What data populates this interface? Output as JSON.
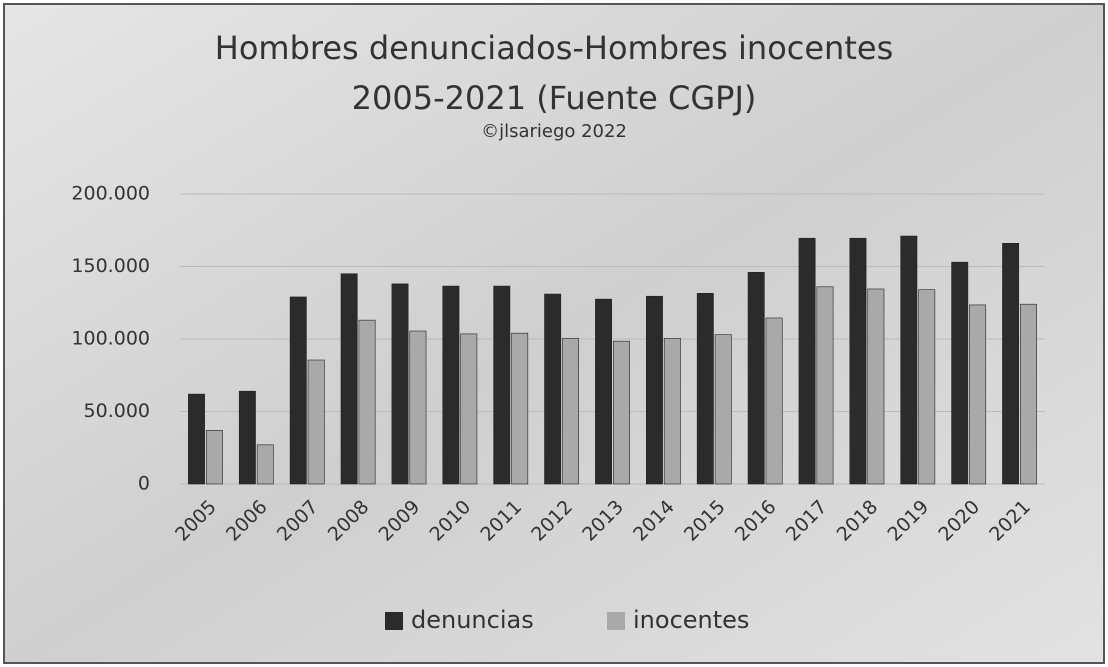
{
  "chart_data": {
    "type": "bar",
    "title": [
      "Hombres denunciados-Hombres inocentes",
      "2005-2021 (Fuente CGPJ)"
    ],
    "subtitle": "©jlsariego 2022",
    "categories": [
      "2005",
      "2006",
      "2007",
      "2008",
      "2009",
      "2010",
      "2011",
      "2012",
      "2013",
      "2014",
      "2015",
      "2016",
      "2017",
      "2018",
      "2019",
      "2020",
      "2021"
    ],
    "series": [
      {
        "name": "denuncias",
        "color": "#2b2b2b",
        "values": [
          62000,
          64000,
          129000,
          145000,
          138000,
          136500,
          136500,
          131000,
          127500,
          129500,
          131500,
          146000,
          169500,
          169500,
          171000,
          153000,
          166000
        ]
      },
      {
        "name": "inocentes",
        "color": "#a9a9a9",
        "values": [
          37000,
          27000,
          85500,
          113000,
          105500,
          103500,
          104000,
          100500,
          98500,
          100500,
          103000,
          114500,
          136000,
          134500,
          134000,
          123500,
          124000
        ]
      }
    ],
    "ylim": [
      0,
      200000
    ],
    "yticks": [
      0,
      {
        "value": 50000,
        "label": "50.000"
      },
      {
        "value": 100000,
        "label": "100.000"
      },
      {
        "value": 150000,
        "label": "150.000"
      },
      {
        "value": 200000,
        "label": "200.000"
      }
    ],
    "grid": true,
    "legend": "bottom"
  }
}
